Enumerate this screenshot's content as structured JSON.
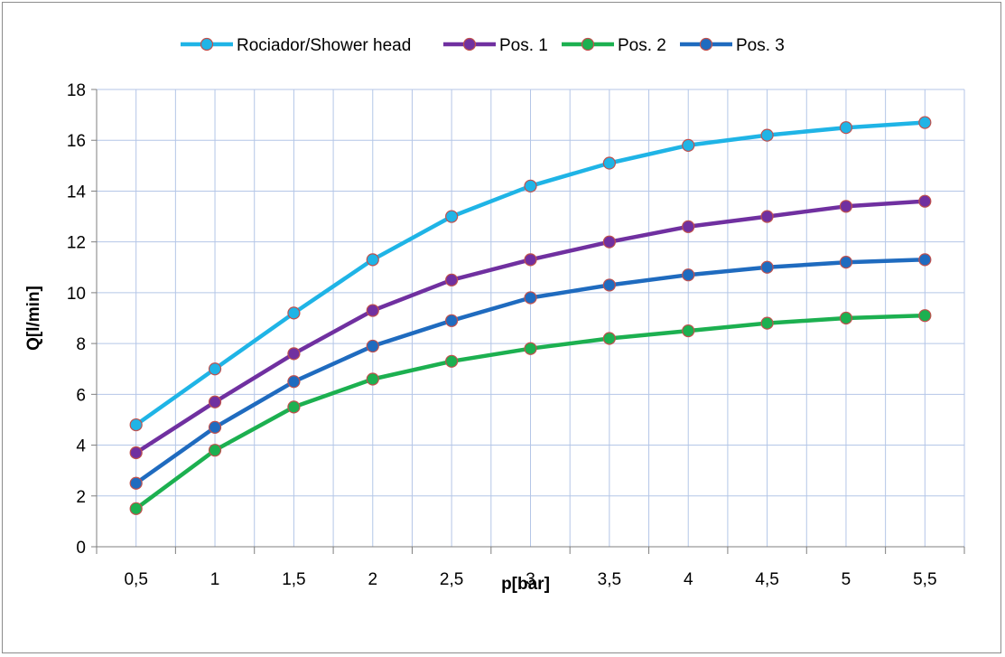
{
  "chart_data": {
    "type": "line",
    "categories": [
      "0,5",
      "1",
      "1,5",
      "2",
      "2,5",
      "3",
      "3,5",
      "4",
      "4,5",
      "5",
      "5,5"
    ],
    "series": [
      {
        "name": "Rociador/Shower head",
        "color": "#1fb4e6",
        "values": [
          4.8,
          7.0,
          9.2,
          11.3,
          13.0,
          14.2,
          15.1,
          15.8,
          16.2,
          16.5,
          16.7
        ]
      },
      {
        "name": "Pos. 1",
        "color": "#7030a0",
        "values": [
          3.7,
          5.7,
          7.6,
          9.3,
          10.5,
          11.3,
          12.0,
          12.6,
          13.0,
          13.4,
          13.6
        ]
      },
      {
        "name": "Pos. 2",
        "color": "#1cb050",
        "values": [
          1.5,
          3.8,
          5.5,
          6.6,
          7.3,
          7.8,
          8.2,
          8.5,
          8.8,
          9.0,
          9.1
        ]
      },
      {
        "name": "Pos. 3",
        "color": "#1f6bbf",
        "values": [
          2.5,
          4.7,
          6.5,
          7.9,
          8.9,
          9.8,
          10.3,
          10.7,
          11.0,
          11.2,
          11.3
        ]
      }
    ],
    "xlabel": "p[bar]",
    "ylabel": "Q[l/min]",
    "ylim": [
      0,
      18
    ],
    "y_ticks": [
      "0",
      "2",
      "4",
      "6",
      "8",
      "10",
      "12",
      "14",
      "16",
      "18"
    ],
    "grid": true,
    "legend_position": "top"
  }
}
